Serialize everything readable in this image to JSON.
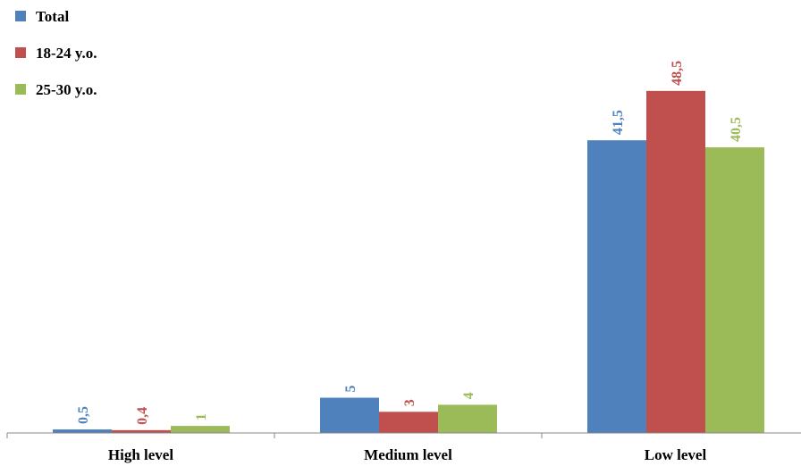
{
  "chart_data": {
    "type": "bar",
    "title": "",
    "xlabel": "",
    "ylabel": "",
    "categories": [
      "High level",
      "Medium level",
      "Low level"
    ],
    "series": [
      {
        "name": "Total",
        "color": "#4F81BD",
        "values": [
          0.5,
          5,
          41.5
        ],
        "labels": [
          "0,5",
          "5",
          "41,5"
        ]
      },
      {
        "name": "18-24 y.o.",
        "color": "#C0504D",
        "values": [
          0.4,
          3,
          48.5
        ],
        "labels": [
          "0,4",
          "3",
          "48,5"
        ]
      },
      {
        "name": "25-30 y.o.",
        "color": "#9BBB59",
        "values": [
          1,
          4,
          40.5
        ],
        "labels": [
          "1",
          "4",
          "40,5"
        ]
      }
    ],
    "ylim": [
      0,
      50
    ],
    "grid": false,
    "legend_position": "top-left",
    "data_labels_rotated": true
  }
}
